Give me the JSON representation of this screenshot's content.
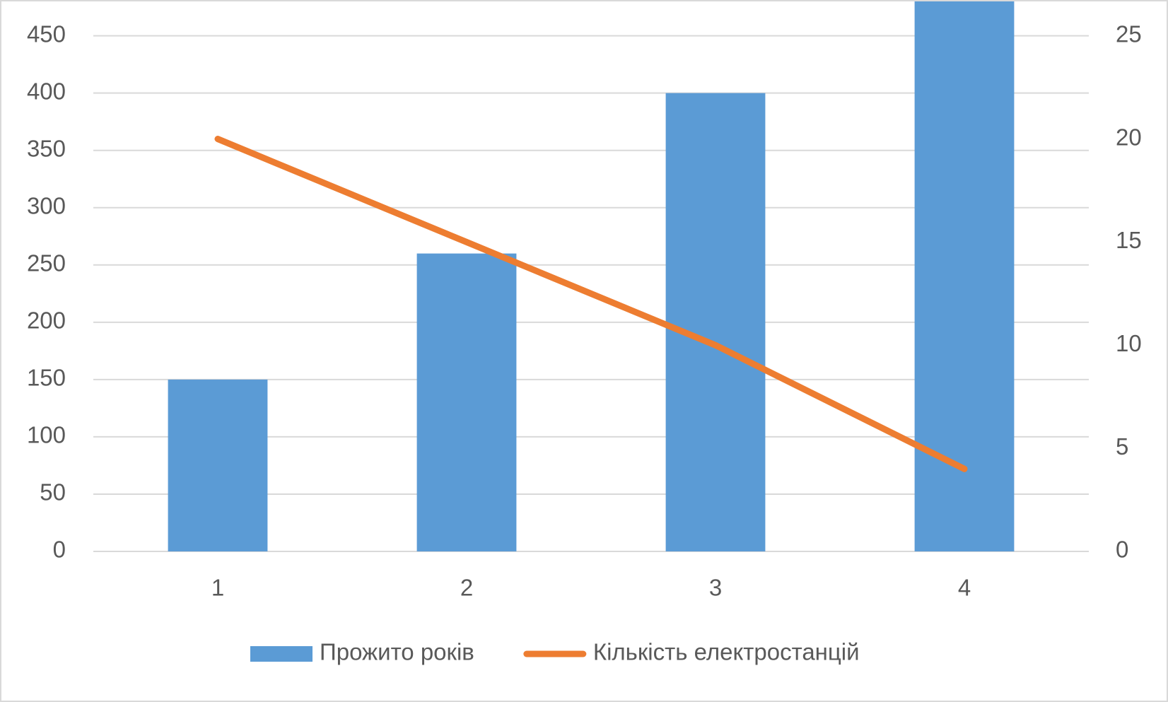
{
  "chart_data": {
    "type": "bar-line",
    "categories": [
      "1",
      "2",
      "3",
      "4"
    ],
    "series": [
      {
        "name": "Прожито років",
        "type": "bar",
        "color": "#5b9bd5",
        "values": [
          150,
          260,
          400,
          500
        ]
      },
      {
        "name": "Кількість електростанцій",
        "type": "line",
        "color": "#ed7d31",
        "axis": "y2",
        "values": [
          20,
          15,
          10,
          4
        ]
      }
    ],
    "ylim": [
      0,
      480
    ],
    "yticks": [
      0,
      50,
      100,
      150,
      200,
      250,
      300,
      350,
      400,
      450
    ],
    "y2lim": [
      0,
      26.67
    ],
    "y2ticks": [
      0,
      5,
      10,
      15,
      20,
      25
    ],
    "grid": true,
    "legend": "bottom"
  }
}
